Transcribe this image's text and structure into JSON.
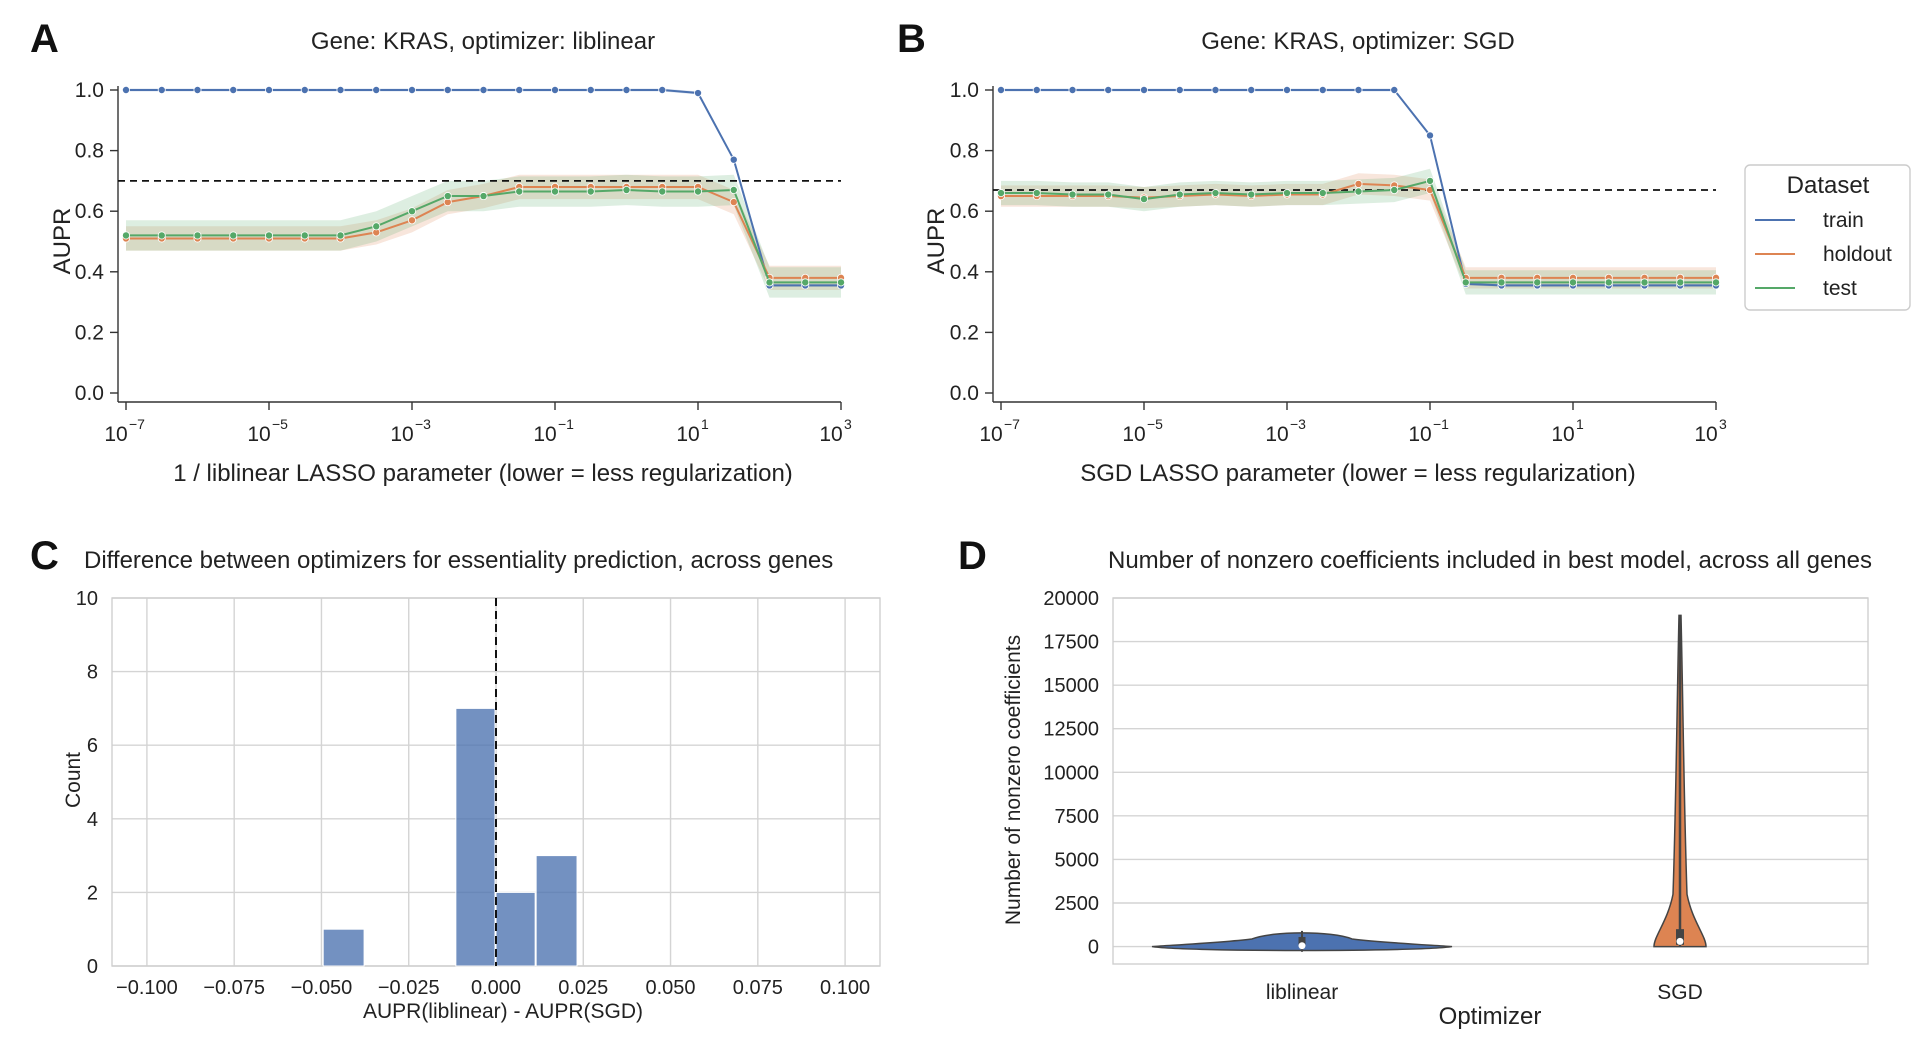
{
  "panels": {
    "A": {
      "letter": "A",
      "title": "Gene: KRAS, optimizer: liblinear",
      "xlabel": "1 / liblinear LASSO parameter (lower = less regularization)",
      "ylabel": "AUPR"
    },
    "B": {
      "letter": "B",
      "title": "Gene: KRAS, optimizer: SGD",
      "xlabel": "SGD LASSO parameter (lower = less regularization)",
      "ylabel": "AUPR"
    },
    "C": {
      "letter": "C",
      "title": "Difference between optimizers for essentiality prediction, across genes",
      "xlabel": "AUPR(liblinear) - AUPR(SGD)",
      "ylabel": "Count"
    },
    "D": {
      "letter": "D",
      "title": "Number of nonzero coefficients included in best model, across all genes",
      "xlabel": "Optimizer",
      "ylabel": "Number of nonzero coefficients"
    }
  },
  "legend": {
    "title": "Dataset",
    "entries": [
      {
        "label": "train",
        "color": "#4c72b0"
      },
      {
        "label": "holdout",
        "color": "#dd8452"
      },
      {
        "label": "test",
        "color": "#55a868"
      }
    ]
  },
  "chart_data": [
    {
      "id": "A",
      "type": "line",
      "title": "Gene: KRAS, optimizer: liblinear",
      "xlabel": "1 / liblinear LASSO parameter (lower = less regularization)",
      "ylabel": "AUPR",
      "xscale": "log",
      "xlim": [
        1e-07,
        1000
      ],
      "ylim": [
        0,
        1.0
      ],
      "xticks": [
        {
          "base": "10",
          "exp": "−7"
        },
        {
          "base": "10",
          "exp": "−5"
        },
        {
          "base": "10",
          "exp": "−3"
        },
        {
          "base": "10",
          "exp": "−1"
        },
        {
          "base": "10",
          "exp": "1"
        },
        {
          "base": "10",
          "exp": "3"
        }
      ],
      "yticks": [
        "0.0",
        "0.2",
        "0.4",
        "0.6",
        "0.8",
        "1.0"
      ],
      "x_exponents": [
        -7,
        -6.5,
        -6,
        -5.5,
        -5,
        -4.5,
        -4,
        -3.5,
        -3,
        -2.5,
        -2,
        -1.5,
        -1,
        -0.5,
        0,
        0.5,
        1,
        1.5,
        2,
        2.5,
        3
      ],
      "reference_line_y": 0.7,
      "series": [
        {
          "name": "train",
          "color": "#4c72b0",
          "values": [
            1.0,
            1.0,
            1.0,
            1.0,
            1.0,
            1.0,
            1.0,
            1.0,
            1.0,
            1.0,
            1.0,
            1.0,
            1.0,
            1.0,
            1.0,
            1.0,
            0.99,
            0.77,
            0.355,
            0.355,
            0.355
          ],
          "band": 0.005
        },
        {
          "name": "holdout",
          "color": "#dd8452",
          "values": [
            0.51,
            0.51,
            0.51,
            0.51,
            0.51,
            0.51,
            0.51,
            0.53,
            0.57,
            0.63,
            0.65,
            0.68,
            0.68,
            0.68,
            0.68,
            0.68,
            0.68,
            0.63,
            0.38,
            0.38,
            0.38
          ],
          "band": 0.04
        },
        {
          "name": "test",
          "color": "#55a868",
          "values": [
            0.52,
            0.52,
            0.52,
            0.52,
            0.52,
            0.52,
            0.52,
            0.55,
            0.6,
            0.65,
            0.65,
            0.665,
            0.665,
            0.665,
            0.67,
            0.665,
            0.665,
            0.67,
            0.365,
            0.365,
            0.365
          ],
          "band": 0.05
        }
      ]
    },
    {
      "id": "B",
      "type": "line",
      "title": "Gene: KRAS, optimizer: SGD",
      "xlabel": "SGD LASSO parameter (lower = less regularization)",
      "ylabel": "AUPR",
      "xscale": "log",
      "xlim": [
        1e-07,
        1000
      ],
      "ylim": [
        0,
        1.0
      ],
      "xticks": [
        {
          "base": "10",
          "exp": "−7"
        },
        {
          "base": "10",
          "exp": "−5"
        },
        {
          "base": "10",
          "exp": "−3"
        },
        {
          "base": "10",
          "exp": "−1"
        },
        {
          "base": "10",
          "exp": "1"
        },
        {
          "base": "10",
          "exp": "3"
        }
      ],
      "yticks": [
        "0.0",
        "0.2",
        "0.4",
        "0.6",
        "0.8",
        "1.0"
      ],
      "x_exponents": [
        -7,
        -6.5,
        -6,
        -5.5,
        -5,
        -4.5,
        -4,
        -3.5,
        -3,
        -2.5,
        -2,
        -1.5,
        -1,
        -0.5,
        0,
        0.5,
        1,
        1.5,
        2,
        2.5,
        3
      ],
      "reference_line_y": 0.67,
      "series": [
        {
          "name": "train",
          "color": "#4c72b0",
          "values": [
            1.0,
            1.0,
            1.0,
            1.0,
            1.0,
            1.0,
            1.0,
            1.0,
            1.0,
            1.0,
            1.0,
            1.0,
            0.85,
            0.36,
            0.355,
            0.355,
            0.355,
            0.355,
            0.355,
            0.355,
            0.355
          ],
          "band": 0.005
        },
        {
          "name": "holdout",
          "color": "#dd8452",
          "values": [
            0.65,
            0.65,
            0.65,
            0.65,
            0.645,
            0.65,
            0.655,
            0.65,
            0.655,
            0.655,
            0.69,
            0.685,
            0.67,
            0.38,
            0.38,
            0.38,
            0.38,
            0.38,
            0.38,
            0.38,
            0.38
          ],
          "band": 0.035
        },
        {
          "name": "test",
          "color": "#55a868",
          "values": [
            0.66,
            0.66,
            0.655,
            0.655,
            0.64,
            0.655,
            0.66,
            0.655,
            0.66,
            0.66,
            0.665,
            0.67,
            0.7,
            0.365,
            0.365,
            0.365,
            0.365,
            0.365,
            0.365,
            0.365,
            0.365
          ],
          "band": 0.04
        }
      ]
    },
    {
      "id": "C",
      "type": "bar",
      "title": "Difference between optimizers for essentiality prediction, across genes",
      "xlabel": "AUPR(liblinear) - AUPR(SGD)",
      "ylabel": "Count",
      "xlim": [
        -0.11,
        0.11
      ],
      "ylim": [
        0,
        10
      ],
      "grid": true,
      "xticks": [
        "−0.100",
        "−0.075",
        "−0.050",
        "−0.025",
        "0.000",
        "0.025",
        "0.050",
        "0.075",
        "0.100"
      ],
      "xtick_values": [
        -0.1,
        -0.075,
        -0.05,
        -0.025,
        0,
        0.025,
        0.05,
        0.075,
        0.1
      ],
      "yticks": [
        "0",
        "2",
        "4",
        "6",
        "8",
        "10"
      ],
      "color": "#4c72b0",
      "bins": [
        {
          "x0": -0.0495,
          "x1": -0.0375,
          "count": 1
        },
        {
          "x0": -0.0115,
          "x1": 0.0,
          "count": 7
        },
        {
          "x0": 0.0,
          "x1": 0.0115,
          "count": 2
        },
        {
          "x0": 0.0115,
          "x1": 0.0235,
          "count": 3
        }
      ],
      "reference_line_x": 0.0
    },
    {
      "id": "D",
      "type": "violin",
      "title": "Number of nonzero coefficients included in best model, across all genes",
      "xlabel": "Optimizer",
      "ylabel": "Number of nonzero coefficients",
      "categories": [
        "liblinear",
        "SGD"
      ],
      "ylim": [
        -1000,
        20000
      ],
      "yticks": [
        "0",
        "2500",
        "5000",
        "7500",
        "10000",
        "12500",
        "15000",
        "17500",
        "20000"
      ],
      "ytick_values": [
        0,
        2500,
        5000,
        7500,
        10000,
        12500,
        15000,
        17500,
        20000
      ],
      "grid": true,
      "violins": [
        {
          "name": "liblinear",
          "color": "#4c72b0",
          "min": -300,
          "max": 900,
          "median": 50,
          "q1": 0,
          "q3": 550
        },
        {
          "name": "SGD",
          "color": "#dd8452",
          "min": 0,
          "max": 19000,
          "median": 300,
          "q1": 100,
          "q3": 1000
        }
      ]
    }
  ]
}
